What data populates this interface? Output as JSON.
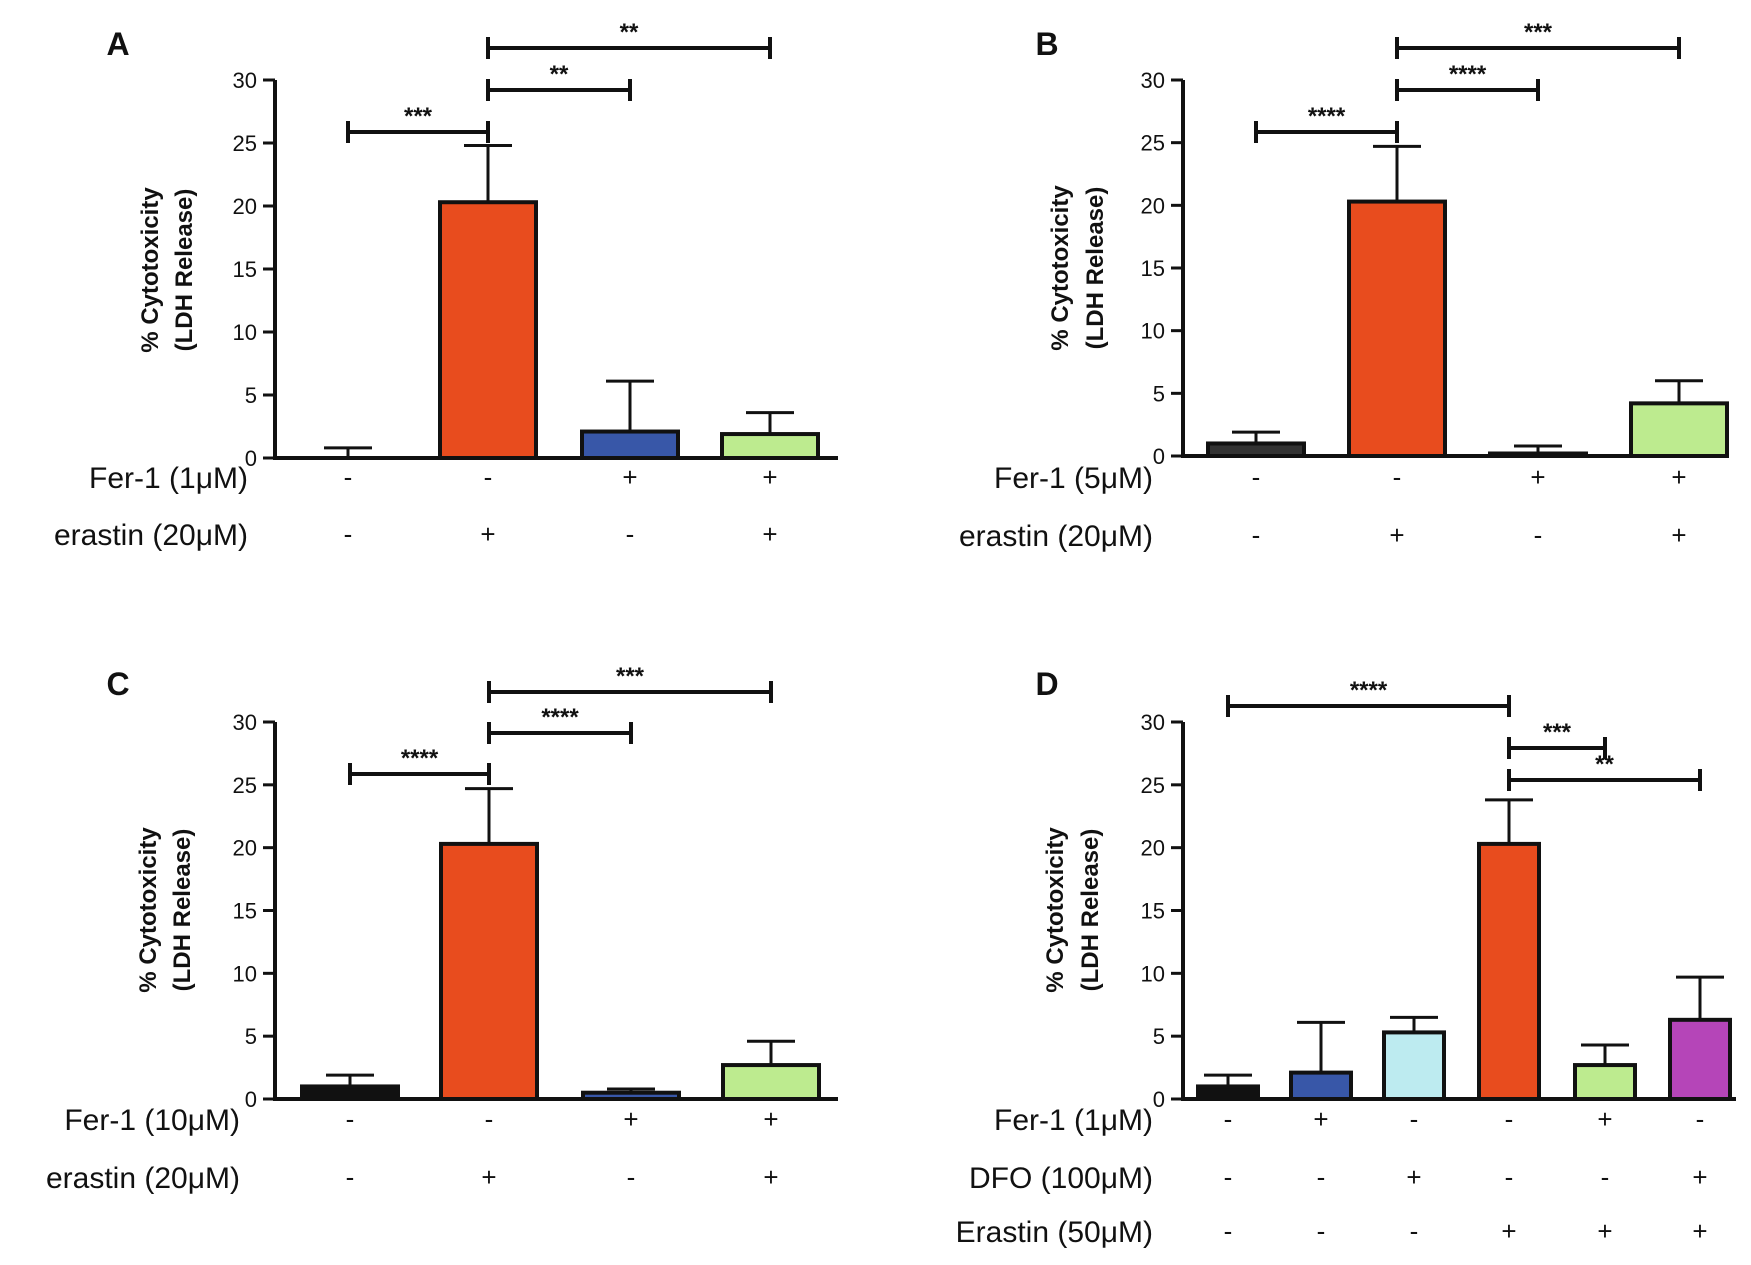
{
  "chart_data": [
    {
      "panel": "A",
      "type": "bar",
      "ylabel": [
        "% Cytotoxicity",
        "(LDH Release)"
      ],
      "ylim": [
        0,
        30
      ],
      "yticks": [
        "0",
        "5",
        "10",
        "15",
        "20",
        "25",
        "30"
      ],
      "values": [
        0,
        20.3,
        2.1,
        1.9
      ],
      "errors": [
        0.8,
        4.5,
        4.0,
        1.7
      ],
      "colors": [
        "#111111",
        "#e84c1e",
        "#3857a8",
        "#bdeb8f"
      ],
      "conditions": [
        {
          "label": "Fer-1 (1μM)",
          "signs": [
            "-",
            "-",
            "+",
            "+"
          ]
        },
        {
          "label": "erastin (20μM)",
          "signs": [
            "-",
            "+",
            "-",
            "+"
          ]
        }
      ],
      "significance": [
        {
          "from": 0,
          "to": 1,
          "stars": "***"
        },
        {
          "from": 1,
          "to": 2,
          "stars": "**"
        },
        {
          "from": 1,
          "to": 3,
          "stars": "**"
        }
      ]
    },
    {
      "panel": "B",
      "type": "bar",
      "ylabel": [
        "% Cytotoxicity",
        "(LDH Release)"
      ],
      "ylim": [
        0,
        30
      ],
      "yticks": [
        "0",
        "5",
        "10",
        "15",
        "20",
        "25",
        "30"
      ],
      "values": [
        1.0,
        20.3,
        0.2,
        4.2
      ],
      "errors": [
        0.9,
        4.4,
        0.6,
        1.8
      ],
      "colors": [
        "#333333",
        "#e84c1e",
        "#3857a8",
        "#bdeb8f"
      ],
      "conditions": [
        {
          "label": "Fer-1 (5μM)",
          "signs": [
            "-",
            "-",
            "+",
            "+"
          ]
        },
        {
          "label": "erastin (20μM)",
          "signs": [
            "-",
            "+",
            "-",
            "+"
          ]
        }
      ],
      "significance": [
        {
          "from": 0,
          "to": 1,
          "stars": "****"
        },
        {
          "from": 1,
          "to": 2,
          "stars": "****"
        },
        {
          "from": 1,
          "to": 3,
          "stars": "***"
        }
      ]
    },
    {
      "panel": "C",
      "type": "bar",
      "ylabel": [
        "% Cytotoxicity",
        "(LDH Release)"
      ],
      "ylim": [
        0,
        30
      ],
      "yticks": [
        "0",
        "5",
        "10",
        "15",
        "20",
        "25",
        "30"
      ],
      "values": [
        1.0,
        20.3,
        0.5,
        2.7
      ],
      "errors": [
        0.9,
        4.4,
        0.3,
        1.9
      ],
      "colors": [
        "#111111",
        "#e84c1e",
        "#3857a8",
        "#bdeb8f"
      ],
      "conditions": [
        {
          "label": "Fer-1 (10μM)",
          "signs": [
            "-",
            "-",
            "+",
            "+"
          ]
        },
        {
          "label": "erastin (20μM)",
          "signs": [
            "-",
            "+",
            "-",
            "+"
          ]
        }
      ],
      "significance": [
        {
          "from": 0,
          "to": 1,
          "stars": "****"
        },
        {
          "from": 1,
          "to": 2,
          "stars": "****"
        },
        {
          "from": 1,
          "to": 3,
          "stars": "***"
        }
      ]
    },
    {
      "panel": "D",
      "type": "bar",
      "ylabel": [
        "% Cytotoxicity",
        "(LDH Release)"
      ],
      "ylim": [
        0,
        30
      ],
      "yticks": [
        "0",
        "5",
        "10",
        "15",
        "20",
        "25",
        "30"
      ],
      "values": [
        1.0,
        2.1,
        5.3,
        20.3,
        2.7,
        6.3
      ],
      "errors": [
        0.9,
        4.0,
        1.2,
        3.5,
        1.6,
        3.4
      ],
      "colors": [
        "#111111",
        "#3857a8",
        "#bdebf0",
        "#e84c1e",
        "#bdeb8f",
        "#b545b8"
      ],
      "conditions": [
        {
          "label": "Fer-1 (1μM)",
          "signs": [
            "-",
            "+",
            "-",
            "-",
            "+",
            "-"
          ]
        },
        {
          "label": "DFO (100μM)",
          "signs": [
            "-",
            "-",
            "+",
            "-",
            "-",
            "+"
          ]
        },
        {
          "label": "Erastin (50μM)",
          "signs": [
            "-",
            "-",
            "-",
            "+",
            "+",
            "+"
          ]
        }
      ],
      "significance": [
        {
          "from": 0,
          "to": 3,
          "stars": "****"
        },
        {
          "from": 3,
          "to": 4,
          "stars": "***"
        },
        {
          "from": 3,
          "to": 5,
          "stars": "**"
        }
      ]
    }
  ]
}
